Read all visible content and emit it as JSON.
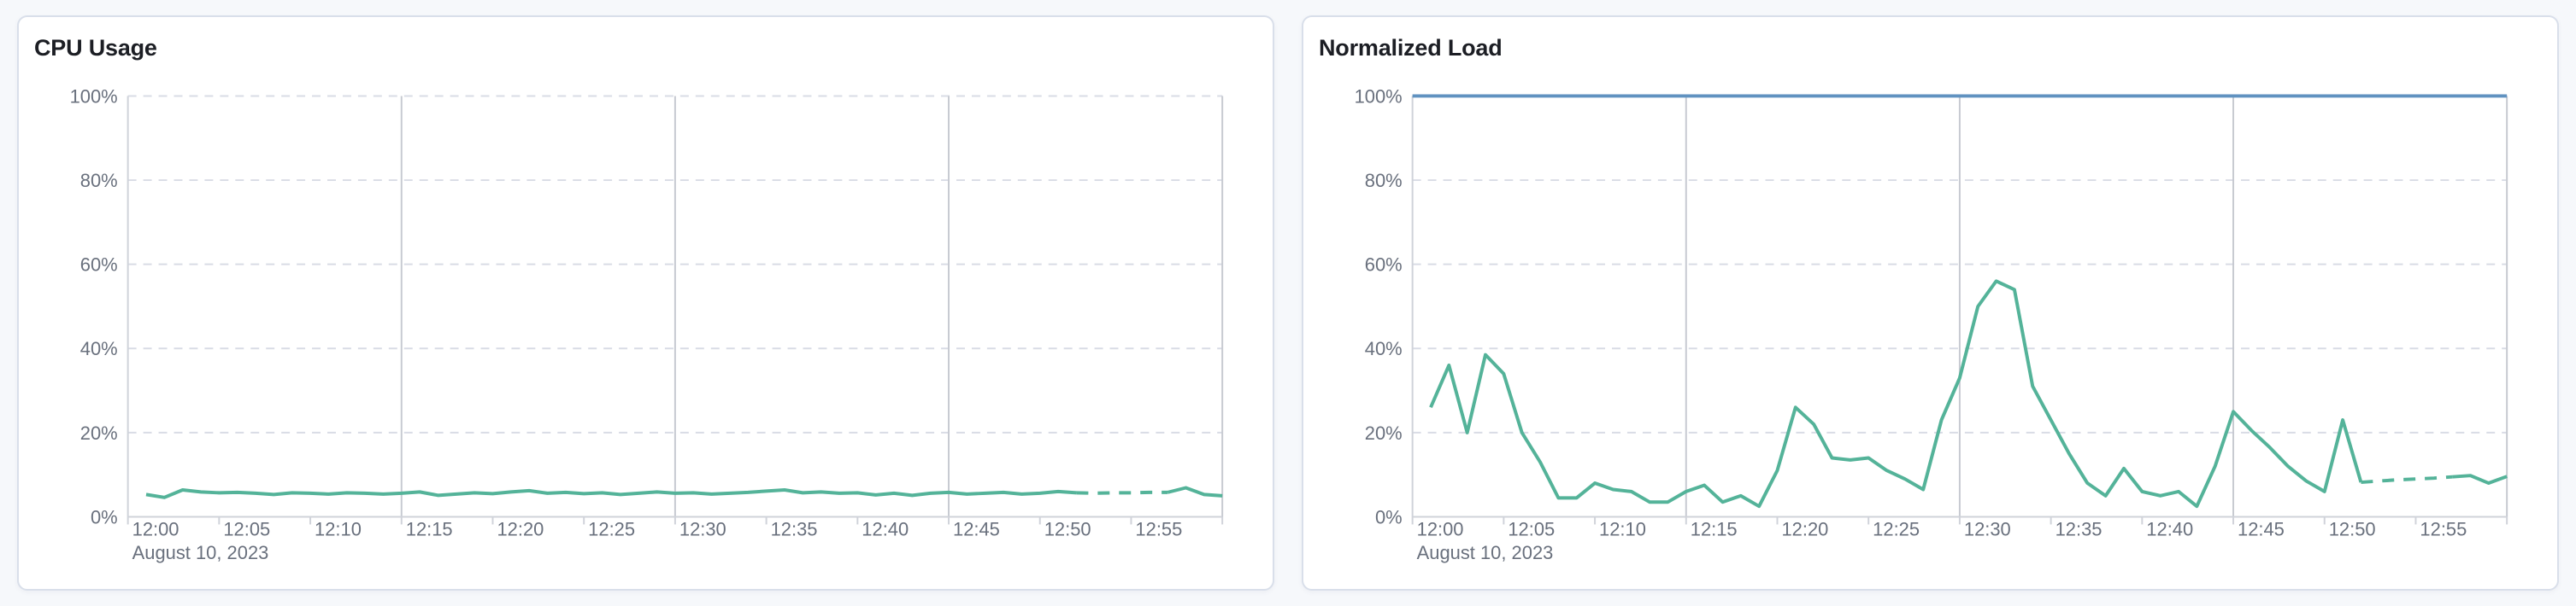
{
  "page": {
    "background_color": "#f6f8fb",
    "panel_border_color": "#d9dfea"
  },
  "palette": {
    "series_green": "#54B399",
    "reference_blue": "#6092C0",
    "axis_text": "#69707d",
    "title_text": "#1c1e24"
  },
  "chart_data": [
    {
      "id": "cpu-usage",
      "type": "line",
      "title": "CPU Usage",
      "xlabel": "",
      "ylabel": "",
      "ylim": [
        0,
        100
      ],
      "grid": "horizontal-dashed, vertical-solid-15min",
      "legend": "none",
      "x_axis": {
        "date_label": "August 10, 2023",
        "domain_minutes": [
          0,
          60
        ],
        "tick_minutes": [
          0,
          5,
          10,
          15,
          20,
          25,
          30,
          35,
          40,
          45,
          50,
          55
        ],
        "tick_labels": [
          "12:00",
          "12:05",
          "12:10",
          "12:15",
          "12:20",
          "12:25",
          "12:30",
          "12:35",
          "12:40",
          "12:45",
          "12:50",
          "12:55"
        ],
        "gridline_minutes": [
          15,
          30,
          45
        ]
      },
      "y_axis": {
        "tick_values": [
          0,
          20,
          40,
          60,
          80,
          100
        ],
        "tick_labels": [
          "0%",
          "20%",
          "40%",
          "60%",
          "80%",
          "100%"
        ]
      },
      "series": [
        {
          "name": "cpu-usage-percent",
          "color": "#54B399",
          "start_minute": 1,
          "step_minutes": 1,
          "dashed_minutes": [
            52,
            57
          ],
          "values": [
            5.3,
            4.6,
            6.4,
            5.9,
            5.7,
            5.8,
            5.6,
            5.3,
            5.7,
            5.6,
            5.4,
            5.7,
            5.6,
            5.4,
            5.6,
            5.9,
            5.1,
            5.4,
            5.7,
            5.5,
            5.9,
            6.2,
            5.6,
            5.8,
            5.5,
            5.7,
            5.3,
            5.6,
            5.9,
            5.6,
            5.7,
            5.4,
            5.6,
            5.8,
            6.1,
            6.4,
            5.7,
            5.9,
            5.6,
            5.7,
            5.2,
            5.6,
            5.1,
            5.6,
            5.8,
            5.4,
            5.6,
            5.8,
            5.4,
            5.6,
            6.0,
            5.7,
            5.6,
            5.7,
            5.7,
            5.8,
            5.8,
            6.9,
            5.3,
            5.0
          ]
        }
      ]
    },
    {
      "id": "normalized-load",
      "type": "line",
      "title": "Normalized Load",
      "xlabel": "",
      "ylabel": "",
      "ylim": [
        0,
        100
      ],
      "grid": "horizontal-dashed, vertical-solid-15min",
      "legend": "none",
      "x_axis": {
        "date_label": "August 10, 2023",
        "domain_minutes": [
          0,
          60
        ],
        "tick_minutes": [
          0,
          5,
          10,
          15,
          20,
          25,
          30,
          35,
          40,
          45,
          50,
          55
        ],
        "tick_labels": [
          "12:00",
          "12:05",
          "12:10",
          "12:15",
          "12:20",
          "12:25",
          "12:30",
          "12:35",
          "12:40",
          "12:45",
          "12:50",
          "12:55"
        ],
        "gridline_minutes": [
          15,
          30,
          45
        ]
      },
      "y_axis": {
        "tick_values": [
          0,
          20,
          40,
          60,
          80,
          100
        ],
        "tick_labels": [
          "0%",
          "20%",
          "40%",
          "60%",
          "80%",
          "100%"
        ]
      },
      "series": [
        {
          "name": "normalized-load-percent",
          "color": "#54B399",
          "start_minute": 1,
          "step_minutes": 1,
          "dashed_minutes": [
            52,
            57
          ],
          "values": [
            26,
            36,
            20,
            38.5,
            34,
            20,
            13,
            4.5,
            4.5,
            8,
            6.5,
            6,
            3.5,
            3.5,
            6,
            7.5,
            3.5,
            5,
            2.5,
            11,
            26,
            22,
            14,
            13.5,
            14,
            11,
            9,
            6.5,
            23,
            33,
            50,
            56,
            54,
            31,
            23,
            15,
            8,
            5,
            11.5,
            6,
            5,
            6,
            2.5,
            12,
            25,
            20.5,
            16.5,
            12,
            8.5,
            6,
            23,
            8.2,
            8.5,
            8.8,
            9,
            9.2,
            9.5,
            9.8,
            8,
            9.6
          ]
        },
        {
          "name": "limit-100-percent",
          "color": "#6092C0",
          "constant_value": 100
        }
      ]
    }
  ]
}
